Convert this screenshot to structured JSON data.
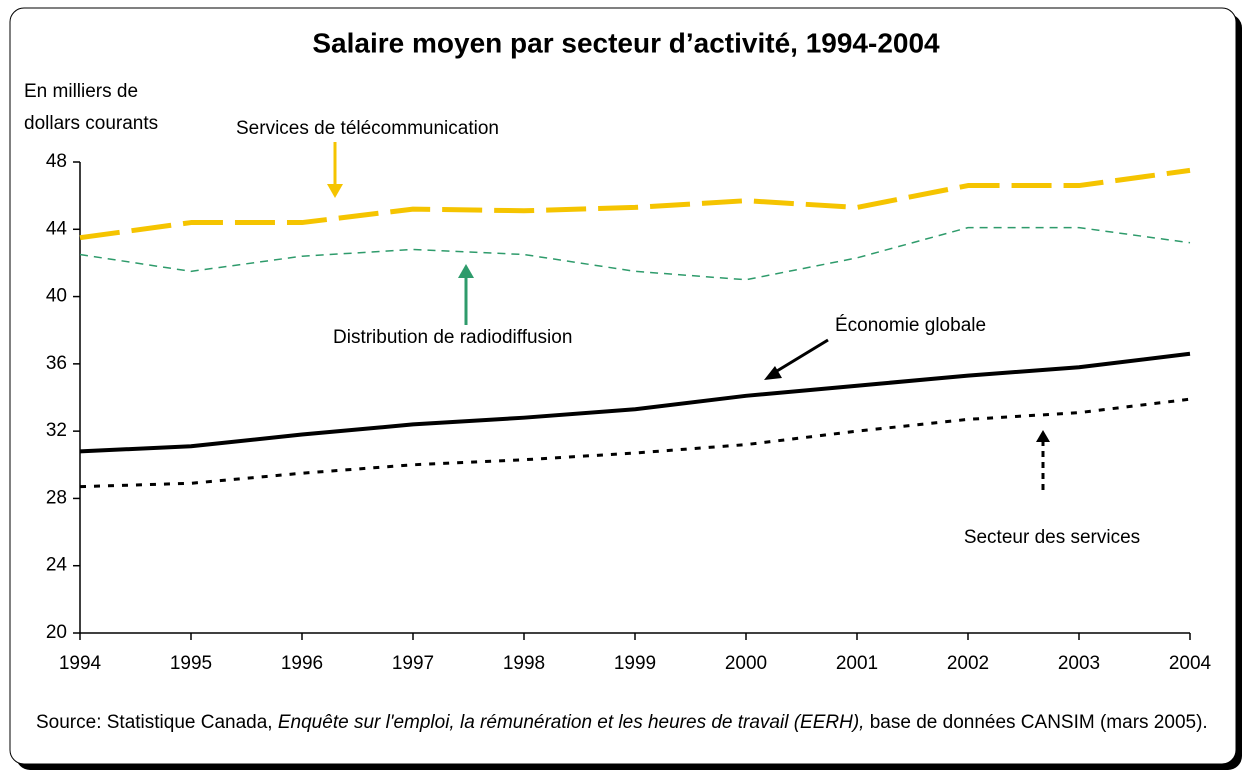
{
  "chart_data": {
    "type": "line",
    "title": "Salaire moyen par secteur d’activité, 1994-2004",
    "y_label": [
      "En milliers de",
      "dollars courants"
    ],
    "x": [
      1994,
      1995,
      1996,
      1997,
      1998,
      1999,
      2000,
      2001,
      2002,
      2003,
      2004
    ],
    "xlim": [
      1994,
      2004
    ],
    "xticks": [
      1994,
      1995,
      1996,
      1997,
      1998,
      1999,
      2000,
      2001,
      2002,
      2003,
      2004
    ],
    "ylim": [
      20,
      48
    ],
    "yticks": [
      20,
      24,
      28,
      32,
      36,
      40,
      44,
      48
    ],
    "series": [
      {
        "name": "Services de télécommunication",
        "color": "#f5c400",
        "values": [
          43.5,
          44.4,
          44.4,
          45.2,
          45.1,
          45.3,
          45.7,
          45.3,
          46.6,
          46.6,
          47.5
        ]
      },
      {
        "name": "Distribution de radiodiffusion",
        "color": "#2e9b6b",
        "values": [
          42.5,
          41.5,
          42.4,
          42.8,
          42.5,
          41.5,
          41.0,
          42.3,
          44.1,
          44.1,
          43.2
        ]
      },
      {
        "name": "Économie globale",
        "color": "#000000",
        "values": [
          30.8,
          31.1,
          31.8,
          32.4,
          32.8,
          33.3,
          34.1,
          34.7,
          35.3,
          35.8,
          36.6
        ]
      },
      {
        "name": "Secteur des services",
        "color": "#000000",
        "values": [
          28.7,
          28.9,
          29.5,
          30.0,
          30.3,
          30.7,
          31.2,
          32.0,
          32.7,
          33.1,
          33.9
        ]
      }
    ],
    "source": [
      "Source: Statistique Canada, ",
      "Enquête sur l'emploi, la rémunération et les heures de travail (EERH),",
      " base de données CANSIM (mars 2005)."
    ]
  }
}
